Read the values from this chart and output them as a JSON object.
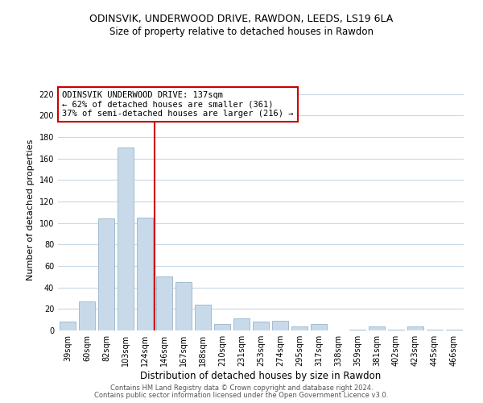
{
  "title": "ODINSVIK, UNDERWOOD DRIVE, RAWDON, LEEDS, LS19 6LA",
  "subtitle": "Size of property relative to detached houses in Rawdon",
  "xlabel": "Distribution of detached houses by size in Rawdon",
  "ylabel": "Number of detached properties",
  "bar_labels": [
    "39sqm",
    "60sqm",
    "82sqm",
    "103sqm",
    "124sqm",
    "146sqm",
    "167sqm",
    "188sqm",
    "210sqm",
    "231sqm",
    "253sqm",
    "274sqm",
    "295sqm",
    "317sqm",
    "338sqm",
    "359sqm",
    "381sqm",
    "402sqm",
    "423sqm",
    "445sqm",
    "466sqm"
  ],
  "bar_values": [
    8,
    27,
    104,
    170,
    105,
    50,
    45,
    24,
    6,
    11,
    8,
    9,
    4,
    6,
    0,
    1,
    4,
    1,
    4,
    1,
    1
  ],
  "bar_color": "#c8daea",
  "bar_edge_color": "#a0bcd0",
  "vline_x": 4.5,
  "vline_color": "#cc0000",
  "annotation_title": "ODINSVIK UNDERWOOD DRIVE: 137sqm",
  "annotation_line1": "← 62% of detached houses are smaller (361)",
  "annotation_line2": "37% of semi-detached houses are larger (216) →",
  "annotation_box_color": "#ffffff",
  "annotation_box_edge": "#cc0000",
  "ylim": [
    0,
    225
  ],
  "yticks": [
    0,
    20,
    40,
    60,
    80,
    100,
    120,
    140,
    160,
    180,
    200,
    220
  ],
  "footer1": "Contains HM Land Registry data © Crown copyright and database right 2024.",
  "footer2": "Contains public sector information licensed under the Open Government Licence v3.0.",
  "bg_color": "#ffffff",
  "grid_color": "#c8d8e8",
  "title_fontsize": 9,
  "subtitle_fontsize": 8.5,
  "xlabel_fontsize": 8.5,
  "ylabel_fontsize": 8,
  "tick_fontsize": 7,
  "footer_fontsize": 6,
  "ann_fontsize": 7.5
}
